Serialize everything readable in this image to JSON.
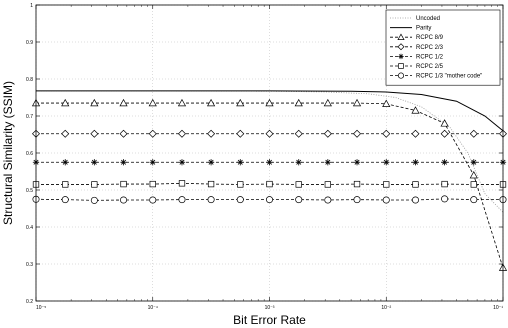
{
  "chart_data": {
    "type": "line",
    "xscale": "log",
    "xlabel": "Bit Error Rate",
    "ylabel": "Structural Similarity (SSIM)",
    "xlim": [
      1e-05,
      0.1
    ],
    "ylim": [
      0.2,
      1.0
    ],
    "xticks": [
      1e-05,
      0.0001,
      0.001,
      0.01,
      0.1
    ],
    "xtick_labels": [
      "10⁻⁵",
      "10⁻⁴",
      "10⁻³",
      "10⁻²",
      "10⁻¹"
    ],
    "yticks": [
      0.2,
      0.3,
      0.4,
      0.5,
      0.6,
      0.7,
      0.8,
      0.9,
      1.0
    ],
    "ytick_labels": [
      "0.2",
      "0.3",
      "0.4",
      "0.5",
      "0.6",
      "0.7",
      "0.8",
      "0.9",
      "1"
    ],
    "grid": true,
    "legend_position": "top-right",
    "series": [
      {
        "name": "Uncoded",
        "style": "dotted",
        "marker": "none",
        "x": [
          1e-05,
          0.0001,
          0.001,
          0.003,
          0.007,
          0.012,
          0.02,
          0.035,
          0.05,
          0.07,
          0.1
        ],
        "y": [
          0.768,
          0.768,
          0.767,
          0.765,
          0.76,
          0.75,
          0.725,
          0.67,
          0.6,
          0.49,
          0.44
        ]
      },
      {
        "name": "Parity",
        "style": "solid",
        "marker": "none",
        "x": [
          1e-05,
          0.0001,
          0.001,
          0.005,
          0.01,
          0.02,
          0.04,
          0.07,
          0.1
        ],
        "y": [
          0.768,
          0.768,
          0.768,
          0.767,
          0.765,
          0.758,
          0.74,
          0.7,
          0.66
        ]
      },
      {
        "name": "RCPC 8/9",
        "style": "dashed",
        "marker": "triangle",
        "x": [
          1e-05,
          1.78e-05,
          3.16e-05,
          5.62e-05,
          0.0001,
          0.000178,
          0.000316,
          0.000562,
          0.001,
          0.00178,
          0.00316,
          0.00562,
          0.01,
          0.0178,
          0.0316,
          0.0562,
          0.1
        ],
        "y": [
          0.735,
          0.735,
          0.735,
          0.735,
          0.735,
          0.735,
          0.735,
          0.735,
          0.735,
          0.735,
          0.735,
          0.735,
          0.733,
          0.715,
          0.68,
          0.54,
          0.29
        ]
      },
      {
        "name": "RCPC 2/3",
        "style": "dashed",
        "marker": "diamond",
        "x": [
          1e-05,
          1.78e-05,
          3.16e-05,
          5.62e-05,
          0.0001,
          0.000178,
          0.000316,
          0.000562,
          0.001,
          0.00178,
          0.00316,
          0.00562,
          0.01,
          0.0178,
          0.0316,
          0.0562,
          0.1
        ],
        "y": [
          0.652,
          0.652,
          0.652,
          0.652,
          0.652,
          0.652,
          0.652,
          0.652,
          0.652,
          0.652,
          0.652,
          0.652,
          0.652,
          0.652,
          0.652,
          0.652,
          0.652
        ]
      },
      {
        "name": "RCPC 1/2",
        "style": "dashed",
        "marker": "star",
        "x": [
          1e-05,
          1.78e-05,
          3.16e-05,
          5.62e-05,
          0.0001,
          0.000178,
          0.000316,
          0.000562,
          0.001,
          0.00178,
          0.00316,
          0.00562,
          0.01,
          0.0178,
          0.0316,
          0.0562,
          0.1
        ],
        "y": [
          0.575,
          0.575,
          0.575,
          0.575,
          0.575,
          0.575,
          0.575,
          0.575,
          0.575,
          0.575,
          0.575,
          0.575,
          0.575,
          0.575,
          0.575,
          0.575,
          0.575
        ]
      },
      {
        "name": "RCPC 2/5",
        "style": "dashed",
        "marker": "square",
        "x": [
          1e-05,
          1.78e-05,
          3.16e-05,
          5.62e-05,
          0.0001,
          0.000178,
          0.000316,
          0.000562,
          0.001,
          0.00178,
          0.00316,
          0.00562,
          0.01,
          0.0178,
          0.0316,
          0.0562,
          0.1
        ],
        "y": [
          0.515,
          0.515,
          0.515,
          0.516,
          0.516,
          0.518,
          0.516,
          0.515,
          0.516,
          0.515,
          0.515,
          0.516,
          0.515,
          0.515,
          0.516,
          0.515,
          0.515
        ]
      },
      {
        "name": "RCPC 1/3 \"mother code\"",
        "style": "dashed",
        "marker": "circle",
        "x": [
          1e-05,
          1.78e-05,
          3.16e-05,
          5.62e-05,
          0.0001,
          0.000178,
          0.000316,
          0.000562,
          0.001,
          0.00178,
          0.00316,
          0.00562,
          0.01,
          0.0178,
          0.0316,
          0.0562,
          0.1
        ],
        "y": [
          0.475,
          0.474,
          0.472,
          0.473,
          0.473,
          0.474,
          0.474,
          0.474,
          0.474,
          0.474,
          0.473,
          0.474,
          0.473,
          0.473,
          0.476,
          0.474,
          0.474
        ]
      }
    ]
  }
}
